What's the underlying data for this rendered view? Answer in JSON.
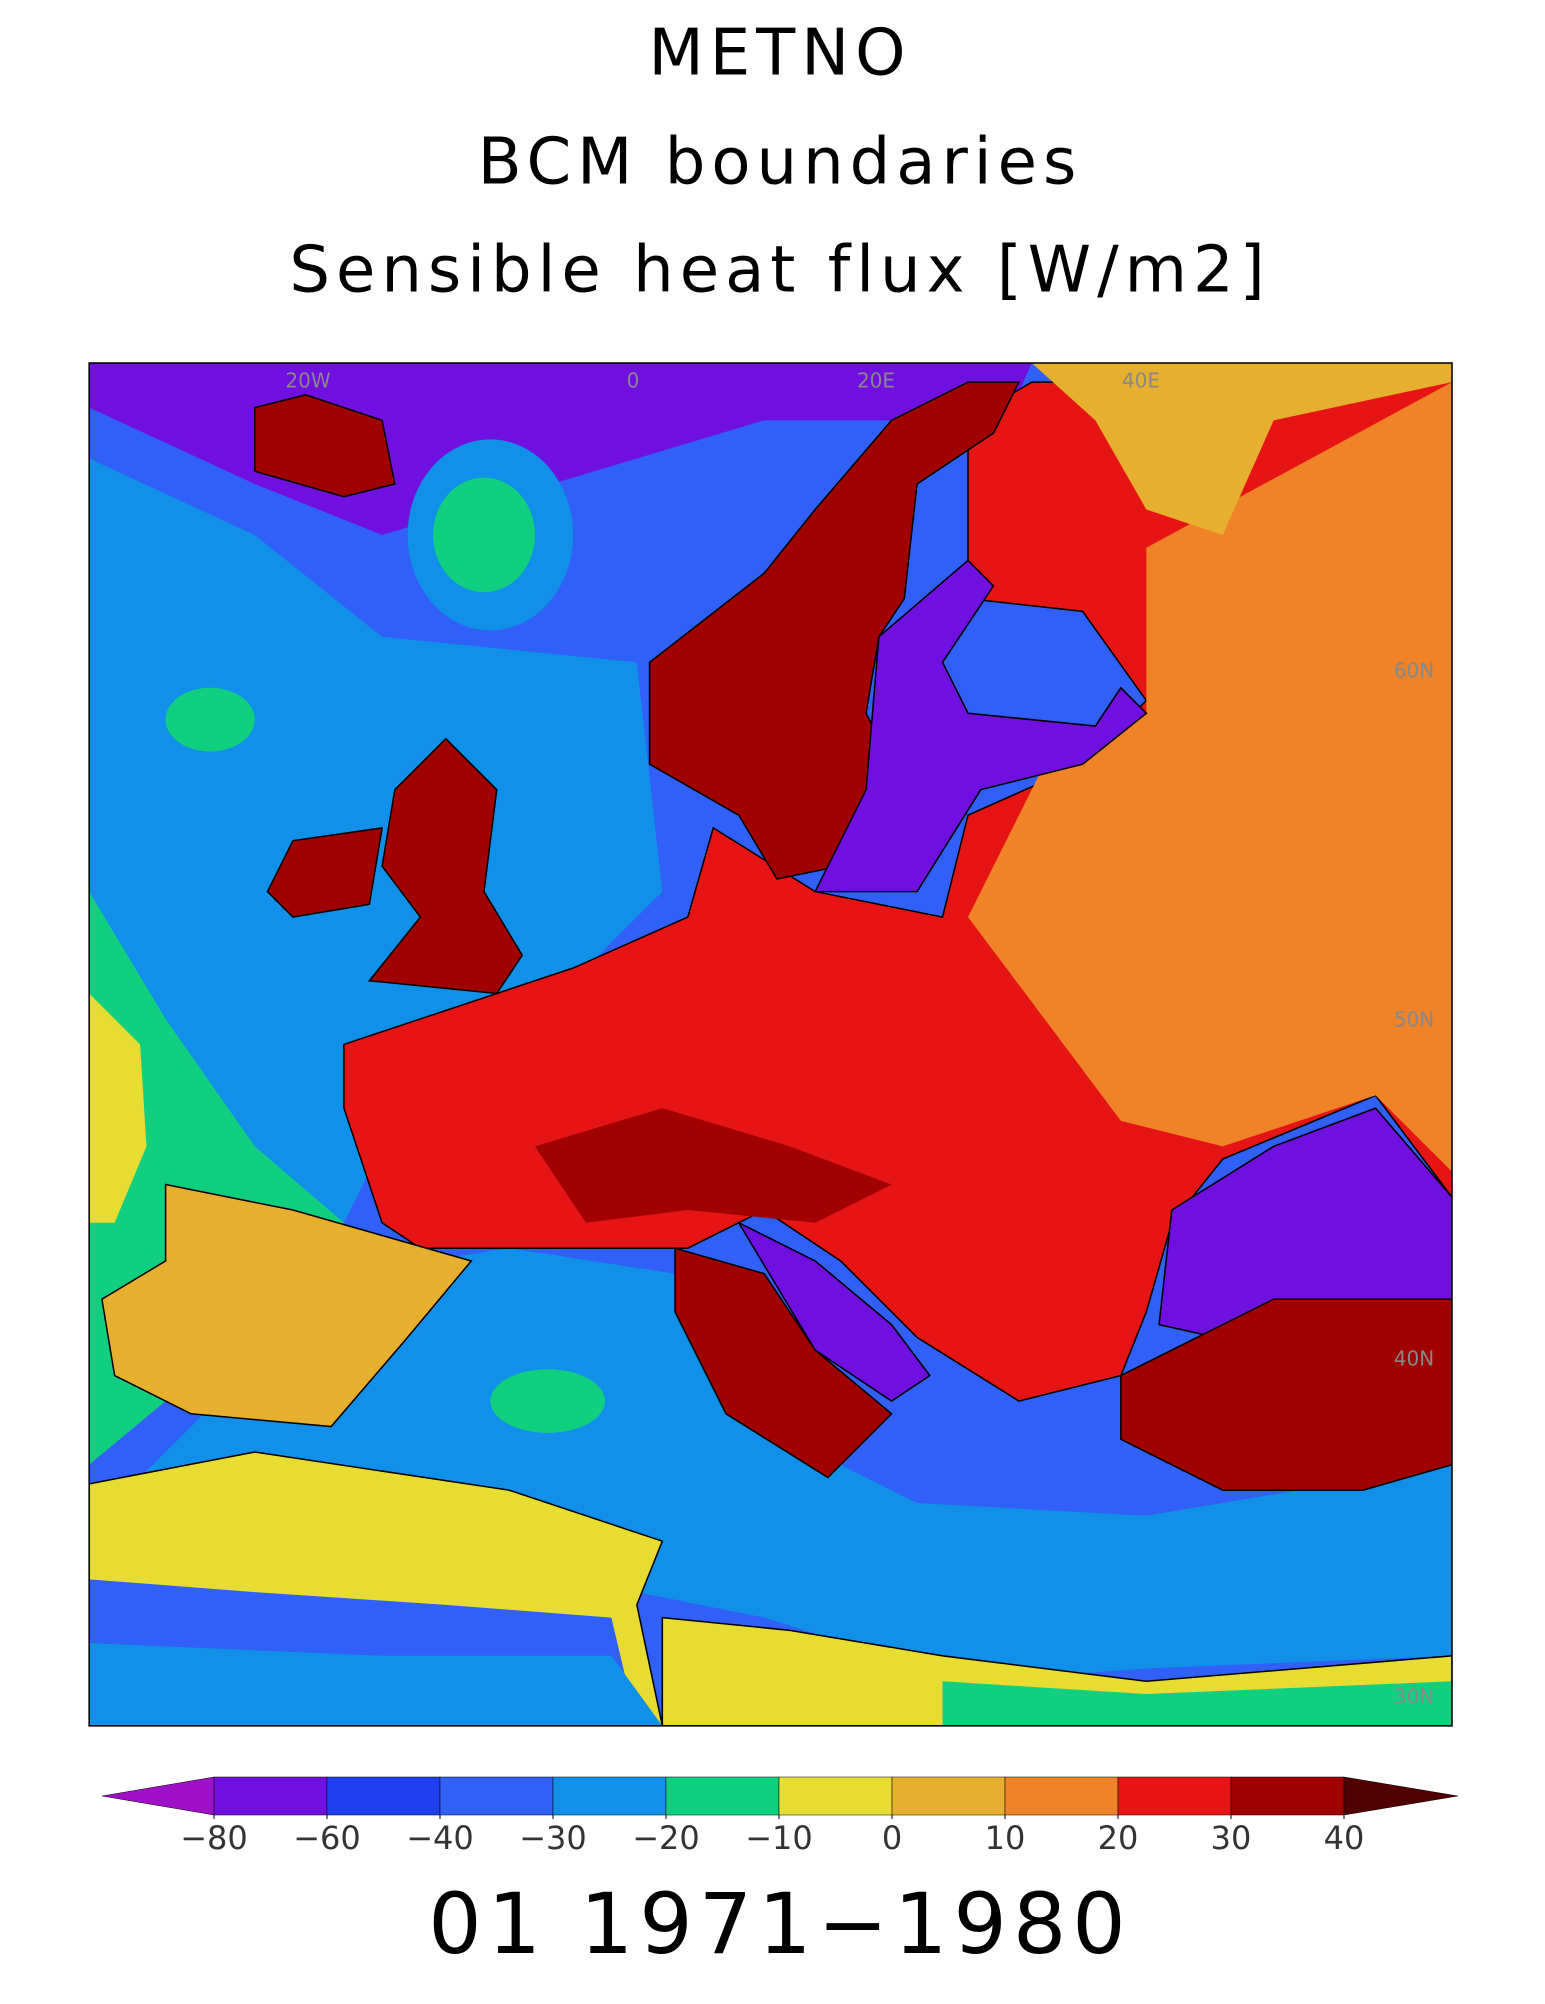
{
  "title": [
    "METNO",
    "BCM boundaries",
    "Sensible heat flux [W/m2]"
  ],
  "map": {
    "lon_labels": [
      "20W",
      "0",
      "20E",
      "40E"
    ],
    "lat_labels": [
      "60N",
      "50N",
      "40N",
      "30N"
    ]
  },
  "colorbar": {
    "colors": [
      "#a010c8",
      "#7010e0",
      "#2040f0",
      "#3060f8",
      "#1090e8",
      "#10d080",
      "#e6dc32",
      "#e6af2d",
      "#f08228",
      "#e61414",
      "#a00000",
      "#500000"
    ],
    "ticks": [
      {
        "value": -80,
        "label": "−80"
      },
      {
        "value": -60,
        "label": "−60"
      },
      {
        "value": -40,
        "label": "−40"
      },
      {
        "value": -30,
        "label": "−30"
      },
      {
        "value": -20,
        "label": "−20"
      },
      {
        "value": -10,
        "label": "−10"
      },
      0,
      10,
      20,
      30,
      40
    ]
  },
  "footer": "01 1971−1980"
}
